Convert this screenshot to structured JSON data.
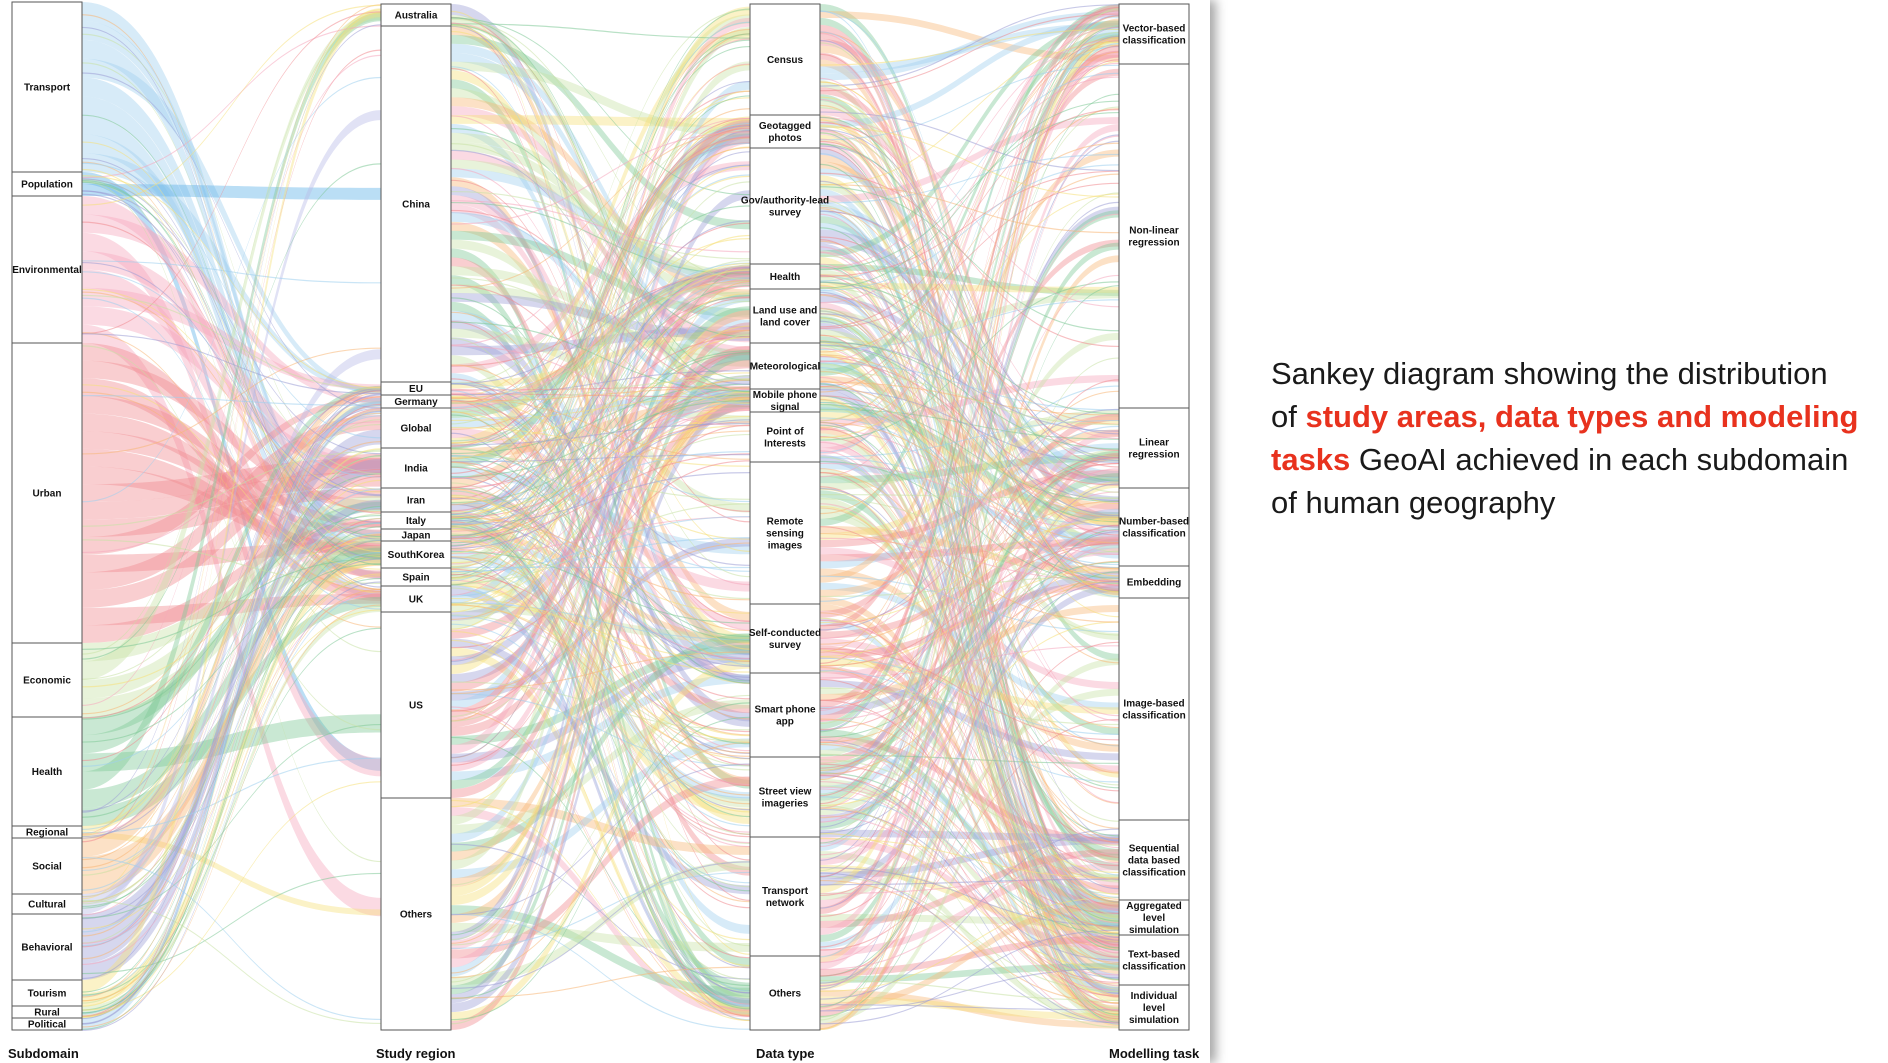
{
  "axis_titles": {
    "subdomain": "Subdomain",
    "study_region": "Study region",
    "data_type": "Data type",
    "modelling_task": "Modelling task"
  },
  "caption": {
    "part1": "Sankey diagram showing the distribution of ",
    "highlight": "study areas, data types and modeling tasks",
    "part2": " GeoAI achieved in each subdomain of human geography"
  },
  "colors": {
    "highlight": "#e8321e",
    "flow_palette": [
      "#f08a8f",
      "#f5a8bd",
      "#9fd0ee",
      "#7fc997",
      "#f7b777",
      "#9d9fd6",
      "#f6e07a",
      "#c9e2a6"
    ]
  },
  "nodes": {
    "subdomain": [
      {
        "label": "Transport",
        "color": "#9fd0ee"
      },
      {
        "label": "Population",
        "color": "#5ab0e6"
      },
      {
        "label": "Environmental",
        "color": "#f5a8bd"
      },
      {
        "label": "Urban",
        "color": "#f08a8f"
      },
      {
        "label": "Economic",
        "color": "#c9e2a6"
      },
      {
        "label": "Health",
        "color": "#7fc997"
      },
      {
        "label": "Regional",
        "color": "#f6e07a"
      },
      {
        "label": "Social",
        "color": "#f7b777"
      },
      {
        "label": "Cultural",
        "color": "#b7b9e6"
      },
      {
        "label": "Behavioral",
        "color": "#9d9fd6"
      },
      {
        "label": "Tourism",
        "color": "#f6e07a"
      },
      {
        "label": "Rural",
        "color": "#c9e2a6"
      },
      {
        "label": "Political",
        "color": "#9fd0ee"
      }
    ],
    "study_region": [
      {
        "label": "Australia"
      },
      {
        "label": "China"
      },
      {
        "label": "EU"
      },
      {
        "label": "Germany"
      },
      {
        "label": "Global"
      },
      {
        "label": "India"
      },
      {
        "label": "Iran"
      },
      {
        "label": "Italy"
      },
      {
        "label": "Japan"
      },
      {
        "label": "SouthKorea"
      },
      {
        "label": "Spain"
      },
      {
        "label": "UK"
      },
      {
        "label": "US"
      },
      {
        "label": "Others"
      }
    ],
    "data_type": [
      {
        "label": "Census"
      },
      {
        "label": "Geotagged photos"
      },
      {
        "label": "Gov/authority-lead survey"
      },
      {
        "label": "Health"
      },
      {
        "label": "Land use and land cover"
      },
      {
        "label": "Meteorological"
      },
      {
        "label": "Mobile phone signal"
      },
      {
        "label": "Point of Interests"
      },
      {
        "label": "Remote sensing images"
      },
      {
        "label": "Self-conducted survey"
      },
      {
        "label": "Smart phone app"
      },
      {
        "label": "Street view imageries"
      },
      {
        "label": "Transport network"
      },
      {
        "label": "Others"
      }
    ],
    "modelling_task": [
      {
        "label": "Vector-based classification"
      },
      {
        "label": "Non-linear regression"
      },
      {
        "label": "Linear regression"
      },
      {
        "label": "Number-based classification"
      },
      {
        "label": "Embedding"
      },
      {
        "label": "Image-based classification"
      },
      {
        "label": "Sequential data based classification"
      },
      {
        "label": "Aggregated level simulation"
      },
      {
        "label": "Text-based classification"
      },
      {
        "label": "Individual level simulation"
      }
    ]
  }
}
